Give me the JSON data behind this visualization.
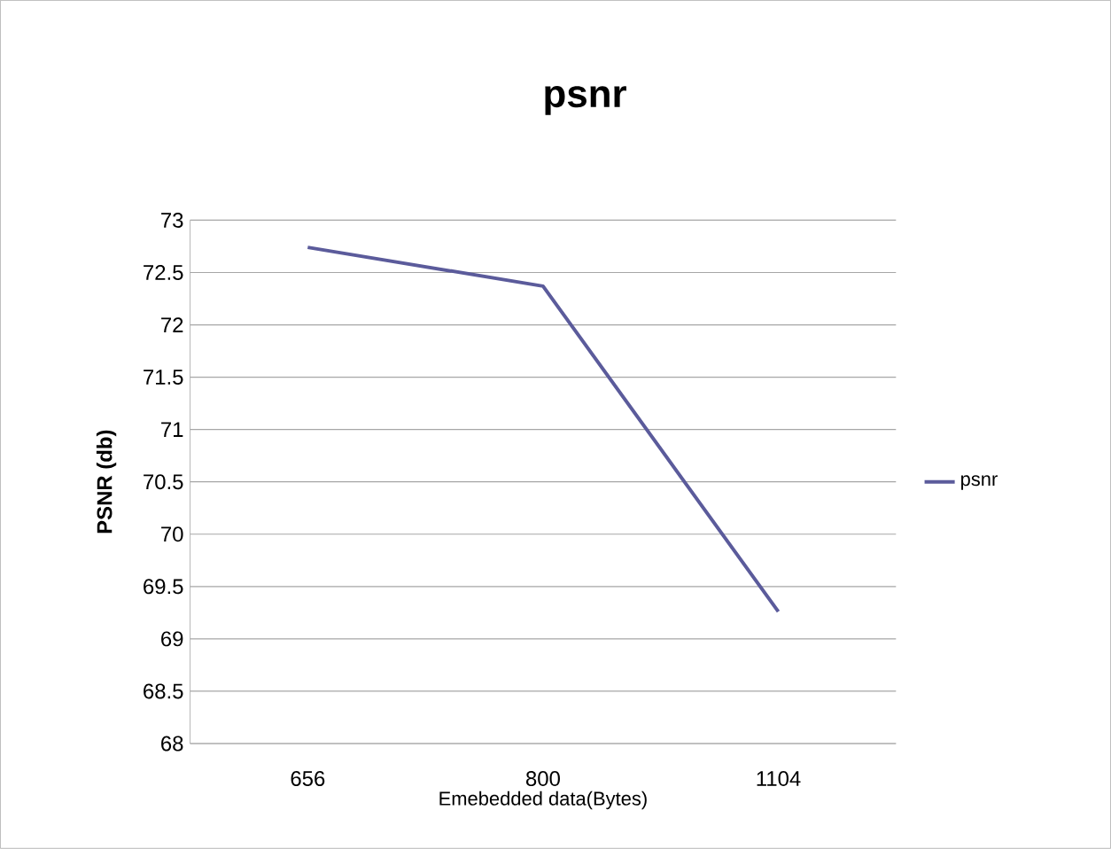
{
  "chart_data": {
    "type": "line",
    "title": "psnr",
    "xlabel": "Emebedded data(Bytes)",
    "ylabel": "PSNR (db)",
    "categories": [
      "656",
      "800",
      "1104"
    ],
    "series": [
      {
        "name": "psnr",
        "color": "#5b5b9b",
        "values": [
          72.74,
          72.37,
          69.26
        ]
      }
    ],
    "ylim": [
      68,
      73
    ],
    "yticks": [
      68,
      68.5,
      69,
      69.5,
      70,
      70.5,
      71,
      71.5,
      72,
      72.5,
      73
    ],
    "grid": "y",
    "legend": "right",
    "marker": "none",
    "line_style": "solid"
  }
}
